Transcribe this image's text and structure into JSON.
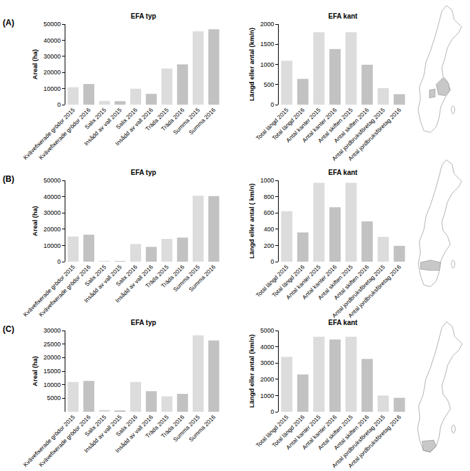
{
  "panel_labels": [
    "(A)",
    "(B)",
    "(C)"
  ],
  "chart_data": [
    {
      "type": "bar",
      "title": "EFA typ",
      "y_label": "Areal (ha)",
      "categories": [
        "Kvävefixerade grödor 2015",
        "Kvävefixerade grödor 2016",
        "Salix 2015",
        "Insådd av vall 2015",
        "Salix 2016",
        "Insådd av vall 2016",
        "Träda 2015",
        "Träda 2016",
        "Summa 2015",
        "Summa 2016"
      ],
      "values": [
        10800,
        12800,
        2300,
        2200,
        9900,
        6700,
        22400,
        25000,
        45500,
        46800
      ],
      "colors": [
        "#dcdcdc",
        "#c2c2c2",
        "#dcdcdc",
        "#c2c2c2",
        "#dcdcdc",
        "#c2c2c2",
        "#dcdcdc",
        "#c2c2c2",
        "#dcdcdc",
        "#c2c2c2"
      ],
      "ylim": [
        0,
        50000
      ],
      "yticks": [
        0,
        10000,
        20000,
        30000,
        40000,
        50000
      ]
    },
    {
      "type": "bar",
      "title": "EFA kant",
      "y_label": "Längd eller antal (km/n)",
      "categories": [
        "Total längd 2015",
        "Total längd 2016",
        "Antal kanter 2015",
        "Antal kanter 2016",
        "Antal skiften 2015",
        "Antal skiften 2016",
        "Antal jordbruksföretag 2015",
        "Antal jordbruksföretag 2016"
      ],
      "values": [
        1090,
        640,
        1800,
        1380,
        1800,
        990,
        410,
        260
      ],
      "colors": [
        "#dcdcdc",
        "#c2c2c2",
        "#dcdcdc",
        "#c2c2c2",
        "#dcdcdc",
        "#c2c2c2",
        "#dcdcdc",
        "#c2c2c2"
      ],
      "ylim": [
        0,
        2000
      ],
      "yticks": [
        0,
        500,
        1000,
        1500,
        2000
      ]
    },
    {
      "type": "bar",
      "title": "EFA typ",
      "y_label": "Areal (ha)",
      "categories": [
        "Kvävefixerade grödor 2015",
        "Kvävefixerade grödor 2016",
        "Salix 2015",
        "Insådd av vall 2015",
        "Salix 2016",
        "Insådd av vall 2016",
        "Träda 2015",
        "Träda 2016",
        "Summa 2015",
        "Summa 2016"
      ],
      "values": [
        15500,
        16600,
        500,
        400,
        10800,
        9100,
        14000,
        14800,
        40600,
        40400
      ],
      "colors": [
        "#dcdcdc",
        "#c2c2c2",
        "#dcdcdc",
        "#c2c2c2",
        "#dcdcdc",
        "#c2c2c2",
        "#dcdcdc",
        "#c2c2c2",
        "#dcdcdc",
        "#c2c2c2"
      ],
      "ylim": [
        0,
        50000
      ],
      "yticks": [
        0,
        10000,
        20000,
        30000,
        40000,
        50000
      ]
    },
    {
      "type": "bar",
      "title": "EFA kant",
      "y_label": "Längd eller antal ( km/n)",
      "categories": [
        "Total längd 2015",
        "Total längd 2016",
        "Antal kanter 2015",
        "Antal kanter 2016",
        "Antal skiften 2015",
        "Antal skiften 2016",
        "Antal jordbruksföretag 2015",
        "Antal jordbruksföretag 2016"
      ],
      "values": [
        620,
        360,
        970,
        670,
        970,
        495,
        305,
        195
      ],
      "colors": [
        "#dcdcdc",
        "#c2c2c2",
        "#dcdcdc",
        "#c2c2c2",
        "#dcdcdc",
        "#c2c2c2",
        "#dcdcdc",
        "#c2c2c2"
      ],
      "ylim": [
        0,
        1000
      ],
      "yticks": [
        0,
        200,
        400,
        600,
        800,
        1000
      ]
    },
    {
      "type": "bar",
      "title": "EFA typ",
      "y_label": "Areal (ha)",
      "categories": [
        "Kvävefixerade grödor 2015",
        "Kvävefixerade grödor 2016",
        "Salix 2015",
        "Insådd av vall 2015",
        "Salix 2016",
        "Insådd av vall 2016",
        "Träda 2015",
        "Träda 2016",
        "Summa 2015",
        "Summa 2016"
      ],
      "values": [
        11000,
        11400,
        700,
        500,
        11000,
        7600,
        5700,
        6600,
        28200,
        26300
      ],
      "colors": [
        "#dcdcdc",
        "#c2c2c2",
        "#dcdcdc",
        "#c2c2c2",
        "#dcdcdc",
        "#c2c2c2",
        "#dcdcdc",
        "#c2c2c2",
        "#dcdcdc",
        "#c2c2c2"
      ],
      "ylim": [
        0,
        30000
      ],
      "yticks": [
        5000,
        10000,
        15000,
        20000,
        25000,
        30000
      ]
    },
    {
      "type": "bar",
      "title": "EFA kant",
      "y_label": "Längd eller antal (km/n)",
      "categories": [
        "Total längd 2015",
        "Total längd 2016",
        "Antal kanter 2015",
        "Antal kanter 2016",
        "Antal skiften 2015",
        "Antal skiften 2016",
        "Antal jordbruksföretag 2015",
        "Antal jordbruksföretag 2016"
      ],
      "values": [
        3380,
        2300,
        4620,
        4450,
        4620,
        3250,
        1000,
        860
      ],
      "colors": [
        "#dcdcdc",
        "#c2c2c2",
        "#dcdcdc",
        "#c2c2c2",
        "#dcdcdc",
        "#c2c2c2",
        "#dcdcdc",
        "#c2c2c2"
      ],
      "ylim": [
        0,
        5000
      ],
      "yticks": [
        0,
        1000,
        2000,
        3000,
        4000,
        5000
      ]
    }
  ]
}
